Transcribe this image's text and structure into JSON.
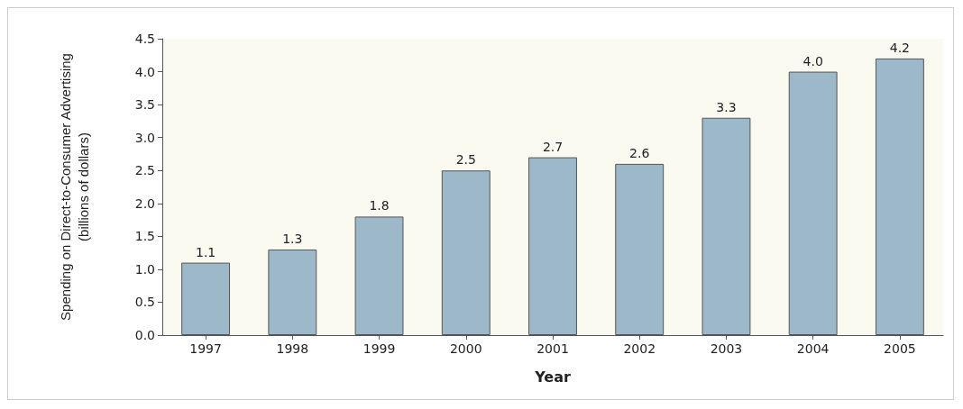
{
  "chart_data": {
    "type": "bar",
    "xlabel": "Year",
    "ylabel": "Spending on Direct-to-Consumer Advertising\n(billions of dollars)",
    "categories": [
      "1997",
      "1998",
      "1999",
      "2000",
      "2001",
      "2002",
      "2003",
      "2004",
      "2005"
    ],
    "values": [
      1.1,
      1.3,
      1.8,
      2.5,
      2.7,
      2.6,
      3.3,
      4.0,
      4.2
    ],
    "value_labels": [
      "1.1",
      "1.3",
      "1.8",
      "2.5",
      "2.7",
      "2.6",
      "3.3",
      "4.0",
      "4.2"
    ],
    "color": "#9db8c9",
    "ylim": [
      0,
      4.5
    ],
    "yticks": [
      {
        "value": 0,
        "label": "0.0"
      },
      {
        "value": 0.5,
        "label": "0.5"
      },
      {
        "value": 1,
        "label": "1.0"
      },
      {
        "value": 1.5,
        "label": "1.5"
      },
      {
        "value": 2,
        "label": "2.0"
      },
      {
        "value": 2.5,
        "label": "2.5"
      },
      {
        "value": 3,
        "label": "3.0"
      },
      {
        "value": 3.5,
        "label": "3.5"
      },
      {
        "value": 4,
        "label": "4.0"
      },
      {
        "value": 4.5,
        "label": "4.5"
      }
    ],
    "grid": false
  }
}
